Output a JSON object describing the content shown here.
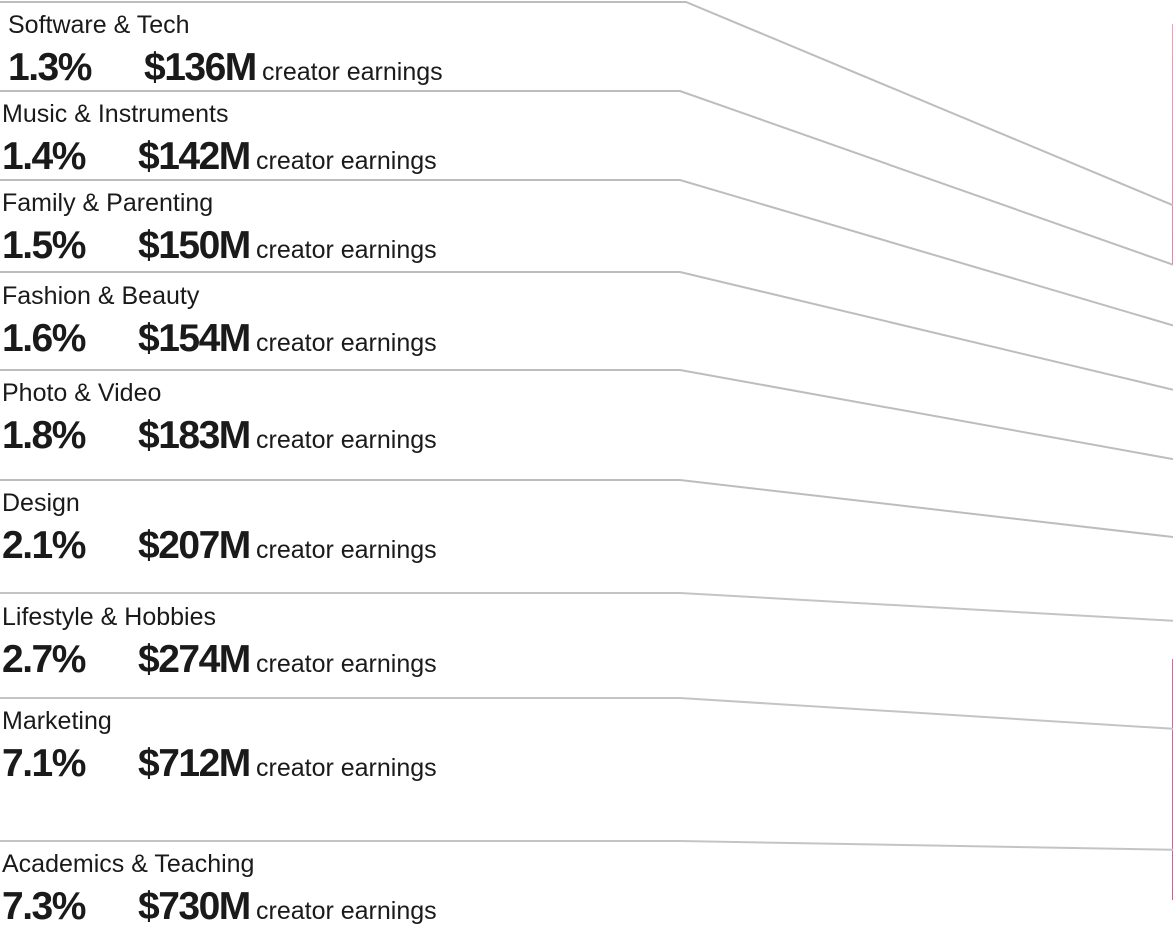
{
  "chart_data": {
    "type": "pie",
    "donut": true,
    "partial": true,
    "suffix_text": "creator earnings",
    "categories": [
      "Software & Tech",
      "Music & Instruments",
      "Family & Parenting",
      "Fashion & Beauty",
      "Photo & Video",
      "Design",
      "Lifestyle & Hobbies",
      "Marketing",
      "Academics & Teaching"
    ],
    "percent_labels": [
      "1.3%",
      "1.4%",
      "1.5%",
      "1.6%",
      "1.8%",
      "2.1%",
      "2.7%",
      "7.1%",
      "7.3%"
    ],
    "value_labels": [
      "$136M",
      "$142M",
      "$150M",
      "$154M",
      "$183M",
      "$207M",
      "$274M",
      "$712M",
      "$730M"
    ],
    "percents": [
      1.3,
      1.4,
      1.5,
      1.6,
      1.8,
      2.1,
      2.7,
      7.1,
      7.3
    ],
    "values_millions": [
      136,
      142,
      150,
      154,
      183,
      207,
      274,
      712,
      730
    ],
    "slice_colors": [
      "#f98fab",
      "#f593ad",
      "#f69aaf",
      "#f78ea6",
      "#f490a6",
      "#b8b2f8",
      "#5a4ec4",
      "#8e0283",
      "#f29ab0"
    ],
    "neighbor_colors": [
      "#ff99ad",
      "#d5559a"
    ]
  }
}
